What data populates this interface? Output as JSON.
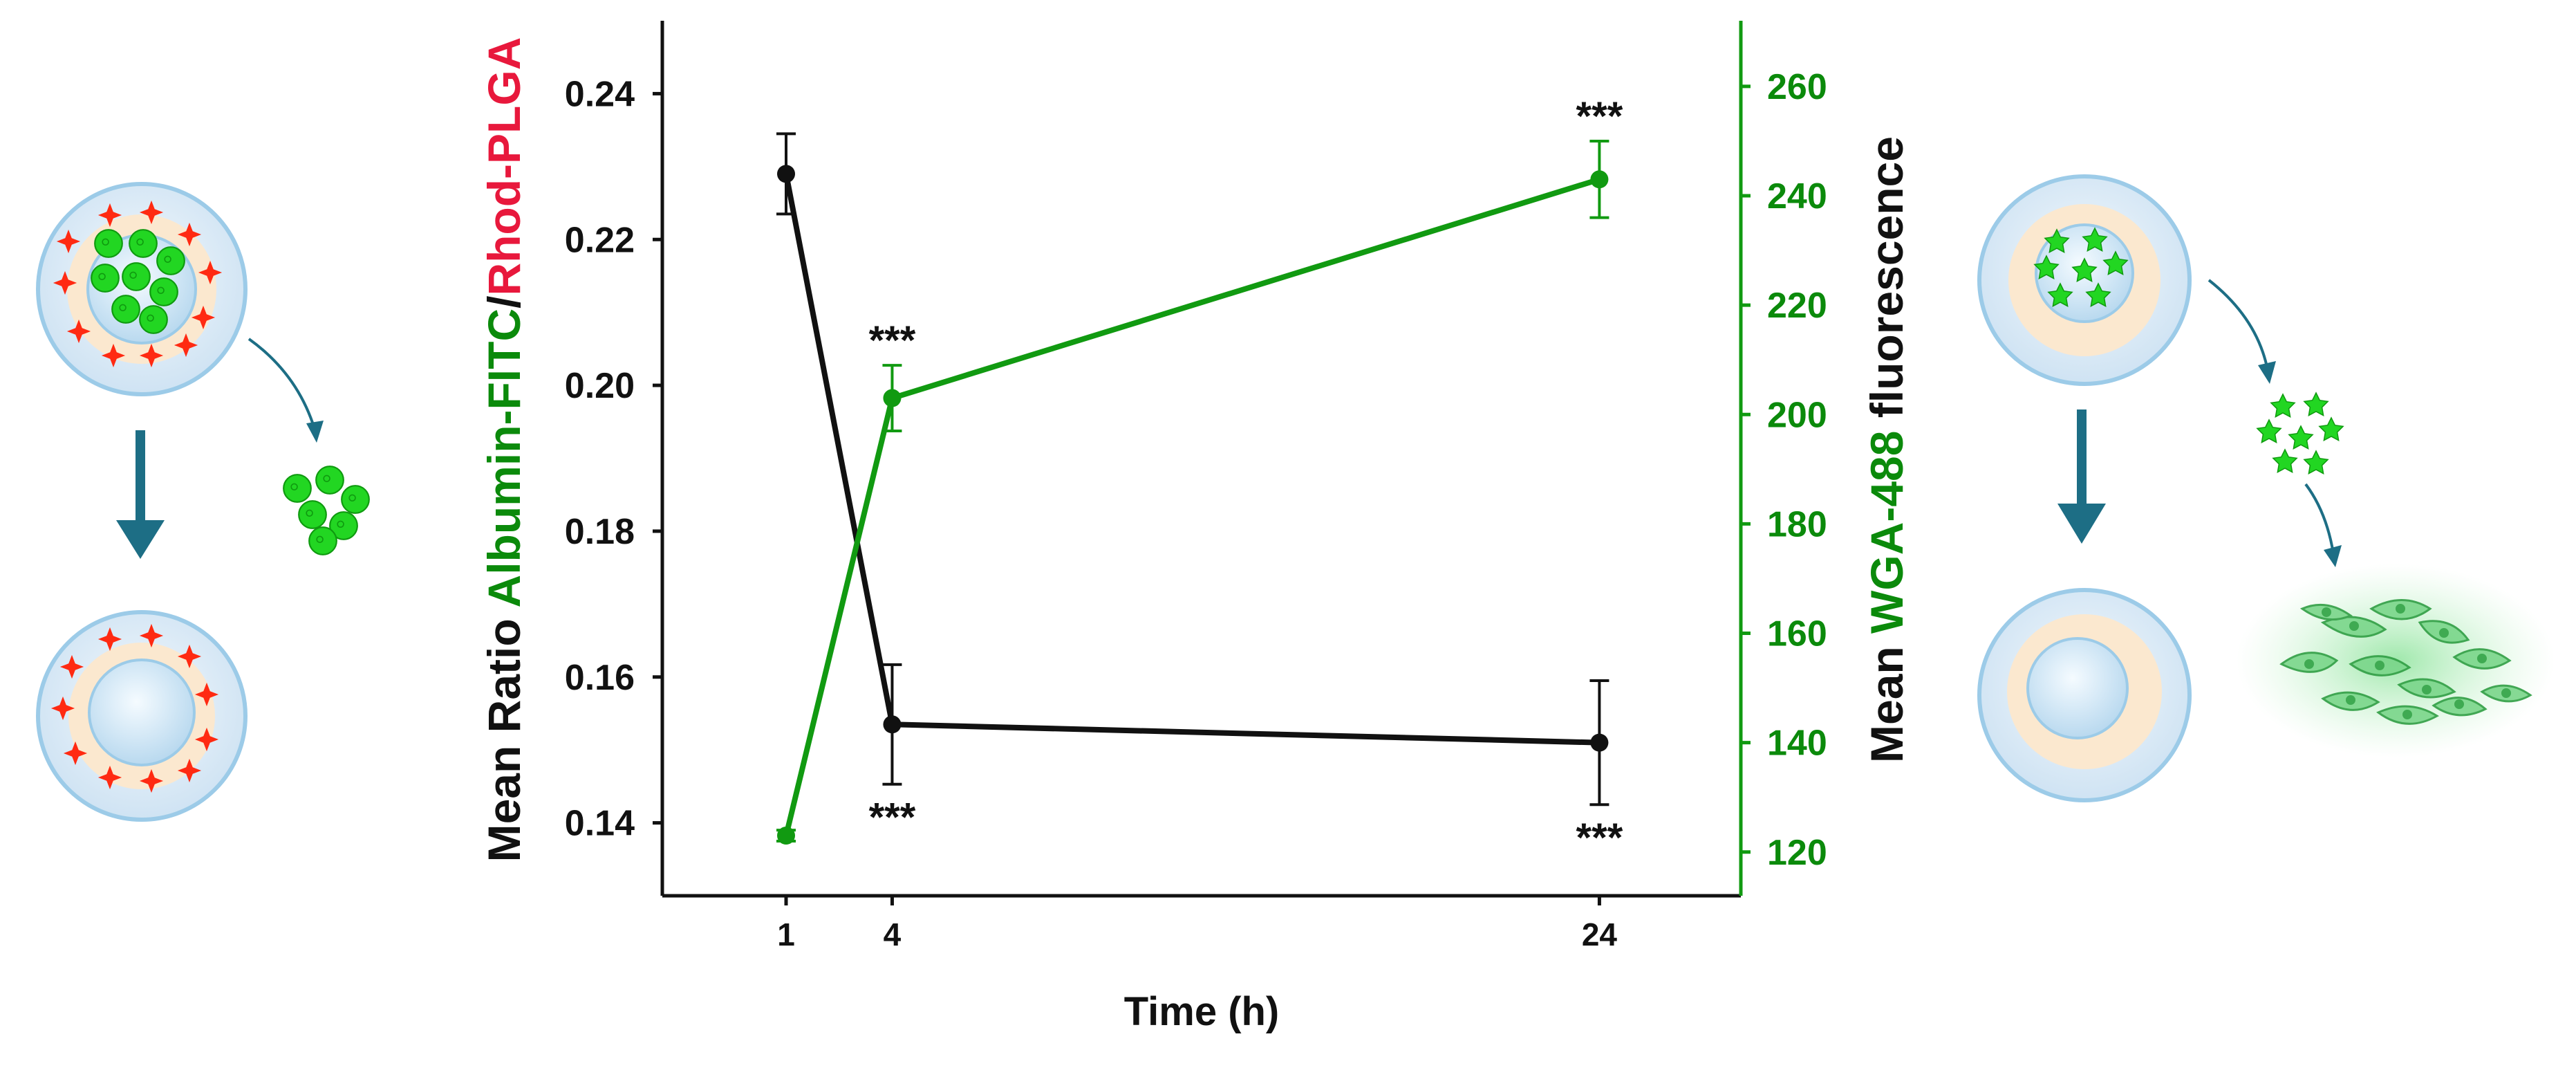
{
  "colors": {
    "black_series": "#111111",
    "green_series": "#119a11",
    "label_green": "#0b8a0b",
    "label_red": "#e8183c",
    "cell_body": "#dcecf8",
    "cell_rim": "#9ccbe8",
    "nucleus_ring": "#fbe8cf",
    "particle_green": "#22d622",
    "marker_red": "#ff2a12",
    "arrow_teal": "#1d6e85"
  },
  "chart_data": {
    "type": "line",
    "title": "",
    "xlabel": "Time (h)",
    "x": [
      1,
      4,
      24
    ],
    "x_ticks": [
      "1",
      "4",
      "24"
    ],
    "xlim": [
      -2.5,
      28
    ],
    "y_left": {
      "label_parts": [
        {
          "text": "Mean Ratio ",
          "color": "black"
        },
        {
          "text": "Albumin-FITC",
          "color": "green"
        },
        {
          "text": "/",
          "color": "black"
        },
        {
          "text": "Rhod-PLGA",
          "color": "red"
        }
      ],
      "ylim": [
        0.13,
        0.25
      ],
      "ticks": [
        0.14,
        0.16,
        0.18,
        0.2,
        0.22,
        0.24
      ],
      "tick_labels": [
        "0.14",
        "0.16",
        "0.18",
        "0.20",
        "0.22",
        "0.24"
      ]
    },
    "y_right": {
      "label_parts": [
        {
          "text": "Mean ",
          "color": "black"
        },
        {
          "text": "WGA-488",
          "color": "green"
        },
        {
          "text": " fluorescence",
          "color": "black"
        }
      ],
      "ylim": [
        112,
        272
      ],
      "ticks": [
        120,
        140,
        160,
        180,
        200,
        220,
        240,
        260
      ],
      "tick_labels": [
        "120",
        "140",
        "160",
        "180",
        "200",
        "220",
        "240",
        "260"
      ]
    },
    "series": [
      {
        "name": "Albumin-FITC/Rhod-PLGA ratio",
        "axis": "left",
        "color_key": "black_series",
        "values": [
          0.229,
          0.1535,
          0.151
        ],
        "errors": [
          0.0055,
          0.0082,
          0.0085
        ],
        "annotations": [
          "",
          "***",
          "***"
        ],
        "annotation_pos": [
          "",
          "below",
          "below"
        ]
      },
      {
        "name": "WGA-488 fluorescence",
        "axis": "right",
        "color_key": "green_series",
        "values": [
          123,
          203,
          243
        ],
        "errors": [
          1,
          6,
          7
        ],
        "annotations": [
          "",
          "***",
          "***"
        ],
        "annotation_pos": [
          "",
          "above",
          "above"
        ]
      }
    ],
    "grid": false,
    "legend": "none"
  },
  "illustrations": {
    "left_panel": "cell with albumin-loaded particles releasing albumin",
    "right_panel": "cell with WGA-loaded particles releasing WGA to cancer cells"
  }
}
